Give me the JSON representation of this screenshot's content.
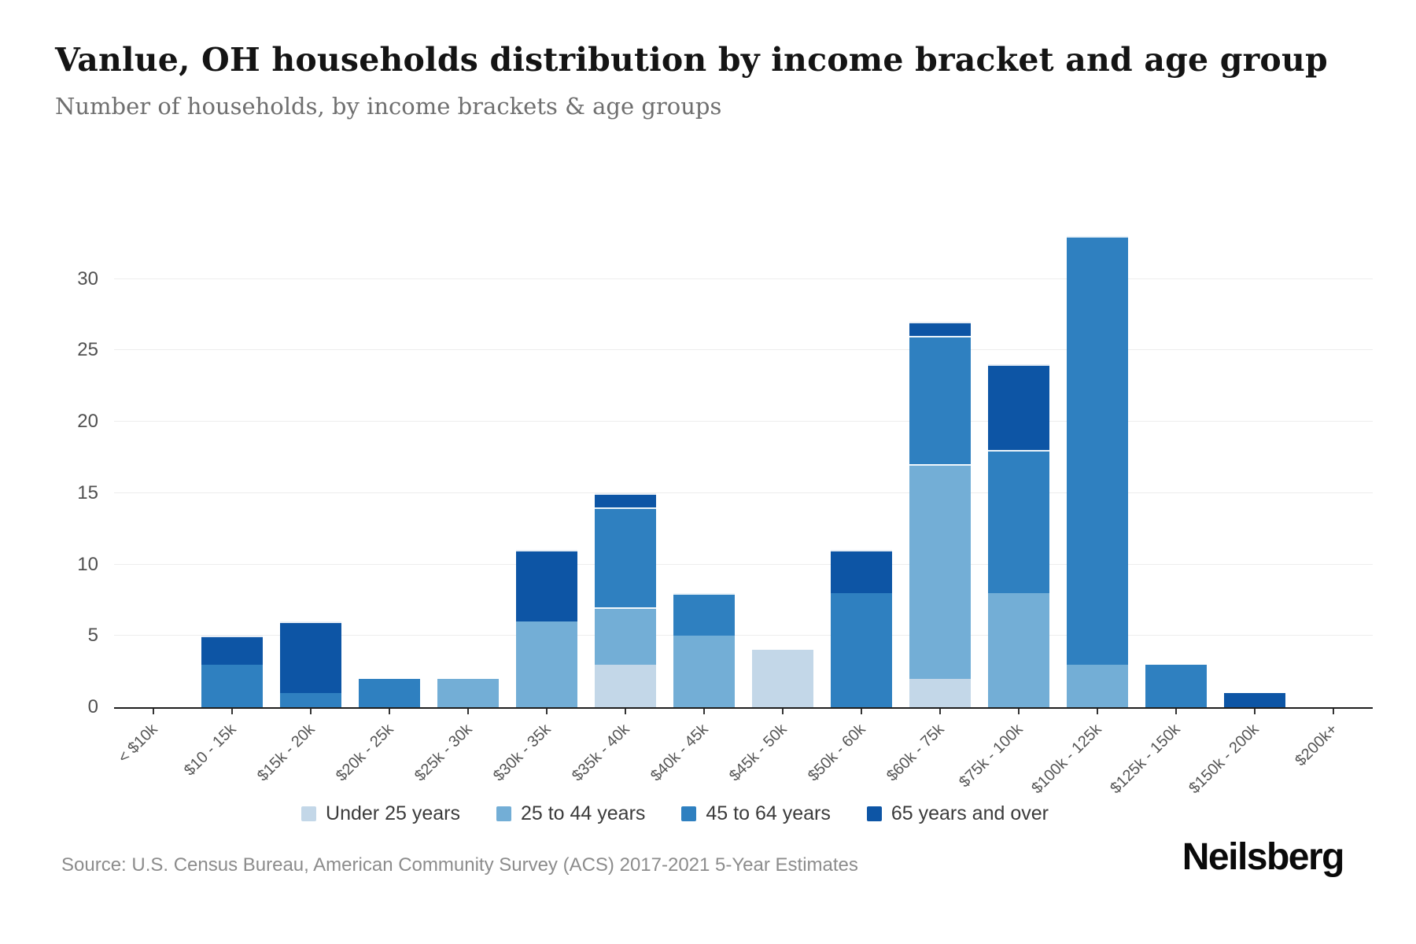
{
  "header": {
    "title": "Vanlue, OH households distribution by income bracket and age group",
    "subtitle": "Number of households, by income brackets & age groups"
  },
  "chart_data": {
    "type": "bar",
    "stacked": true,
    "title": "Vanlue, OH households distribution by income bracket and age group",
    "subtitle": "Number of households, by income brackets & age groups",
    "categories": [
      "< $10k",
      "$10 - 15k",
      "$15k - 20k",
      "$20k - 25k",
      "$25k - 30k",
      "$30k - 35k",
      "$35k - 40k",
      "$40k - 45k",
      "$45k - 50k",
      "$50k - 60k",
      "$60k - 75k",
      "$75k - 100k",
      "$100k - 125k",
      "$125k - 150k",
      "$150k - 200k",
      "$200k+"
    ],
    "series": [
      {
        "name": "Under 25 years",
        "color": "#c3d7e8",
        "values": [
          0,
          0,
          0,
          0,
          0,
          0,
          3,
          0,
          4,
          0,
          2,
          0,
          0,
          0,
          0,
          0
        ]
      },
      {
        "name": "25 to 44 years",
        "color": "#73aed6",
        "values": [
          0,
          0,
          0,
          0,
          2,
          6,
          4,
          5,
          0,
          0,
          15,
          8,
          3,
          0,
          0,
          0
        ]
      },
      {
        "name": "45 to 64 years",
        "color": "#2f80c0",
        "values": [
          0,
          3,
          1,
          2,
          0,
          0,
          7,
          3,
          0,
          8,
          9,
          10,
          30,
          3,
          0,
          0
        ]
      },
      {
        "name": "65 years and over",
        "color": "#0d55a5",
        "values": [
          0,
          2,
          5,
          0,
          0,
          5,
          1,
          0,
          0,
          3,
          1,
          6,
          0,
          0,
          1,
          0
        ]
      }
    ],
    "totals": [
      0,
      5,
      6,
      2,
      2,
      11,
      15,
      8,
      4,
      11,
      27,
      24,
      33,
      3,
      1,
      0
    ],
    "xlabel": "",
    "ylabel": "",
    "ylim": [
      0,
      33
    ],
    "yticks": [
      0,
      5,
      10,
      15,
      20,
      25,
      30
    ],
    "grid": true,
    "legend_position": "bottom"
  },
  "footer": {
    "source": "Source: U.S. Census Bureau, American Community Survey (ACS) 2017-2021 5-Year Estimates",
    "brand": "Neilsberg"
  }
}
